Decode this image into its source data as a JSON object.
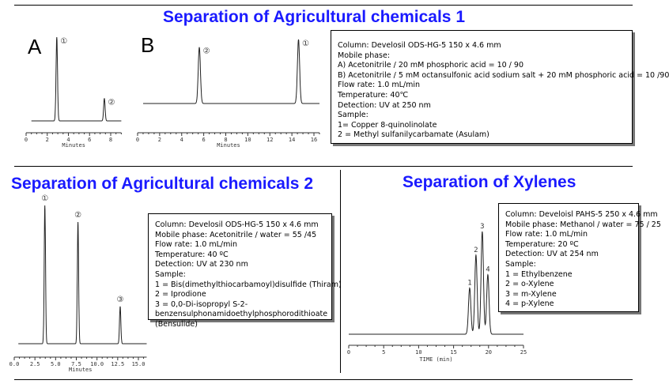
{
  "titles": {
    "t1": "Separation of Agricultural chemicals 1",
    "t2": "Separation of Agricultural chemicals 2",
    "t3": "Separation of Xylenes"
  },
  "panel_labels": {
    "a": "A",
    "b": "B"
  },
  "box1": [
    "Column: Develosil ODS-HG-5 150 x 4.6 mm",
    "Mobile phase:",
    "A) Acetonitrile / 20 mM phosphoric acid = 10 / 90",
    "B) Acetonitrile / 5 mM octansulfonic acid sodium salt + 20 mM phosphoric acid = 10 /90",
    "Flow rate: 1.0 mL/min",
    "Temperature: 40℃",
    "Detection: UV at 250 nm",
    "Sample:",
    "1= Copper 8-quinolinolate",
    "2 = Methyl sulfanilycarbamate (Asulam)"
  ],
  "box2": [
    "Column: Develosil ODS-HG-5 150 x 4.6 mm",
    "Mobile phase: Acetonitrile / water = 55 /45",
    "Flow rate: 1.0 mL/min",
    "Temperature: 40 ºC",
    "Detection: UV at 230 nm",
    "Sample:",
    "1 = Bis(dimethylthiocarbamoyl)disulfide (Thiram)",
    "2 = Iprodione",
    "3 = 0,0-Di-isopropyl S-2-",
    "benzensulphonamidoethylphosphorodithioate",
    "(Bensulide)"
  ],
  "box3": [
    "Column: Develoisl PAHS-5 250 x 4.6 mm",
    "Mobile phase: Methanol / water = 75 / 25",
    "Flow rate: 1.0 mL/min",
    "Temperature: 20 ºC",
    "Detection: UV at 254 nm",
    "Sample:",
    "1 = Ethylbenzene",
    "2 = o-Xylene",
    "3 = m-Xylene",
    "4 = p-Xylene"
  ],
  "chart_data": [
    {
      "type": "line",
      "id": "A",
      "xlabel": "Minutes",
      "xlim": [
        0,
        9
      ],
      "ticks": [
        "0",
        "2",
        "4",
        "6",
        "8"
      ],
      "tickvals": [
        0,
        2,
        4,
        6,
        8
      ],
      "peaks": [
        {
          "label": "①",
          "t": 2.9,
          "h": 1.0
        },
        {
          "label": "②",
          "t": 7.4,
          "h": 0.27
        }
      ]
    },
    {
      "type": "line",
      "id": "B",
      "xlabel": "Minutes",
      "xlim": [
        0,
        16.5
      ],
      "ticks": [
        "0",
        "2",
        "4",
        "6",
        "8",
        "10",
        "12",
        "14",
        "16"
      ],
      "tickvals": [
        0,
        2,
        4,
        6,
        8,
        10,
        12,
        14,
        16
      ],
      "peaks": [
        {
          "label": "②",
          "t": 5.6,
          "h": 0.88
        },
        {
          "label": "①",
          "t": 14.6,
          "h": 1.0
        }
      ]
    },
    {
      "type": "line",
      "id": "C",
      "xlabel": "Minutes",
      "xlim": [
        0,
        16
      ],
      "ticks": [
        "0.0",
        "2.5",
        "5.0",
        "7.5",
        "10.0",
        "12.5",
        "15.0"
      ],
      "tickvals": [
        0,
        2.5,
        5,
        7.5,
        10,
        12.5,
        15
      ],
      "peaks": [
        {
          "label": "①",
          "t": 3.7,
          "h": 1.0
        },
        {
          "label": "②",
          "t": 7.7,
          "h": 0.88
        },
        {
          "label": "③",
          "t": 12.8,
          "h": 0.27
        }
      ]
    },
    {
      "type": "line",
      "id": "D",
      "xlabel": "TIME (min)",
      "xlim": [
        0,
        25
      ],
      "ticks": [
        "0",
        "5",
        "10",
        "15",
        "20",
        "25"
      ],
      "tickvals": [
        0,
        5,
        10,
        15,
        20,
        25
      ],
      "peaks": [
        {
          "label": "1",
          "t": 17.3,
          "h": 0.45
        },
        {
          "label": "2",
          "t": 18.2,
          "h": 0.77
        },
        {
          "label": "3",
          "t": 19.1,
          "h": 1.0
        },
        {
          "label": "4",
          "t": 19.9,
          "h": 0.58
        }
      ]
    }
  ]
}
